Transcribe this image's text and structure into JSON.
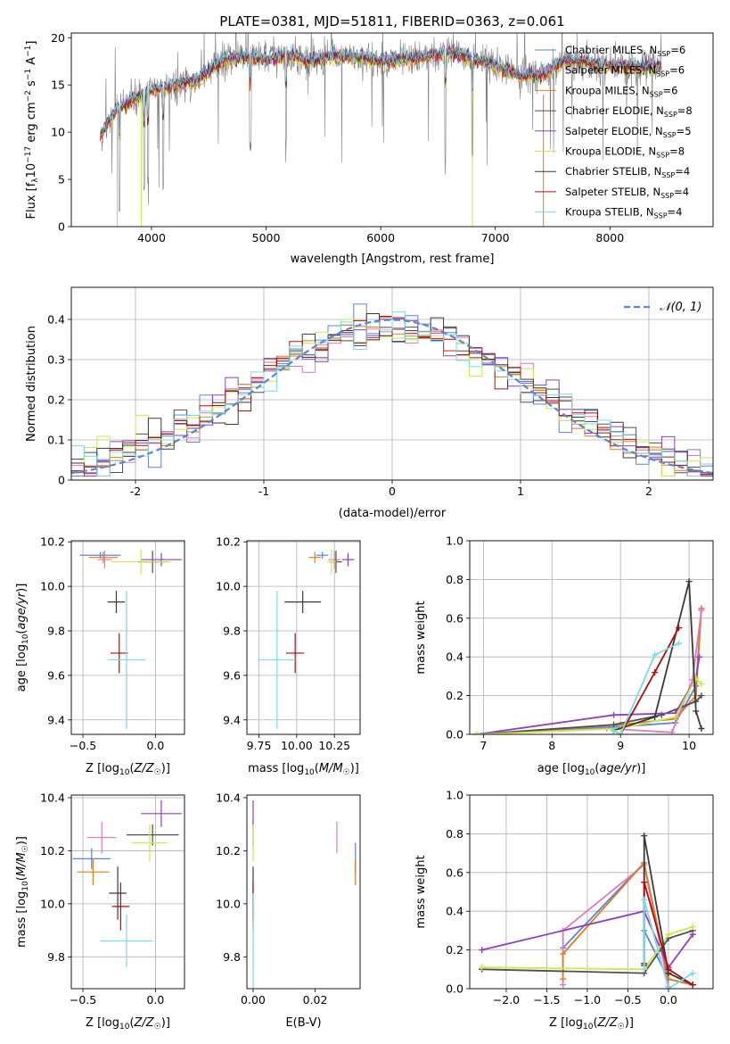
{
  "figure": {
    "title": "PLATE=0381, MJD=51811, FIBERID=0363, z=0.061"
  },
  "colors": {
    "Chabrier MILES": "#5b84d8",
    "Salpeter MILES": "#e377c2",
    "Kroupa MILES": "#e07b20",
    "Chabrier ELODIE": "#4f4f4f",
    "Salpeter ELODIE": "#8e3fc0",
    "Kroupa ELODIE": "#c9ea4a",
    "Chabrier STELIB": "#3a3a3a",
    "Salpeter STELIB": "#b00c0c",
    "Kroupa STELIB": "#7adbe4",
    "data": "#7f7f7f",
    "grid": "#b0b0b0",
    "gaussian": "#5b84d8"
  },
  "chart_data": [
    {
      "id": "spectrum",
      "type": "line",
      "title": "PLATE=0381, MJD=51811, FIBERID=0363, z=0.061",
      "xlabel": "wavelength [Angstrom, rest frame]",
      "ylabel": "Flux [f_λ 10^-17 erg cm^-2 s^-1 A^-1]",
      "xlim": [
        3300,
        8900
      ],
      "ylim": [
        0,
        20.5
      ],
      "xticks": [
        4000,
        5000,
        6000,
        7000,
        8000
      ],
      "yticks": [
        0,
        5,
        10,
        15,
        20
      ],
      "grid": false,
      "legend_position": "top-right",
      "continuum_x": [
        3550,
        3700,
        3850,
        4000,
        4200,
        4400,
        4600,
        4800,
        5000,
        5200,
        5400,
        5600,
        5800,
        6000,
        6200,
        6400,
        6600,
        6800,
        7000,
        7200,
        7400,
        7600,
        7800,
        8000,
        8200,
        8400
      ],
      "continuum_y": [
        9.5,
        12.5,
        13.5,
        14.5,
        15.0,
        15.5,
        17.5,
        18.0,
        17.8,
        18.2,
        17.5,
        18.2,
        18.0,
        17.5,
        17.8,
        18.0,
        18.5,
        17.8,
        17.0,
        16.0,
        16.0,
        17.5,
        17.5,
        17.0,
        17.0,
        17.0
      ],
      "absorption_lines": [
        3720,
        3934,
        3969,
        4102,
        4861,
        5175,
        6563,
        6800
      ],
      "series": [
        {
          "name": "Chabrier MILES, N_SSP=6",
          "label": "Chabrier MILES, N",
          "n": "6"
        },
        {
          "name": "Salpeter MILES, N_SSP=6",
          "label": "Salpeter MILES, N",
          "n": "6"
        },
        {
          "name": "Kroupa MILES, N_SSP=6",
          "label": "Kroupa MILES, N",
          "n": "6"
        },
        {
          "name": "Chabrier ELODIE, N_SSP=8",
          "label": "Chabrier ELODIE, N",
          "n": "8"
        },
        {
          "name": "Salpeter ELODIE, N_SSP=5",
          "label": "Salpeter ELODIE, N",
          "n": "5"
        },
        {
          "name": "Kroupa ELODIE, N_SSP=8",
          "label": "Kroupa ELODIE, N",
          "n": "8"
        },
        {
          "name": "Chabrier STELIB, N_SSP=4",
          "label": "Chabrier STELIB, N",
          "n": "4"
        },
        {
          "name": "Salpeter STELIB, N_SSP=4",
          "label": "Salpeter STELIB, N",
          "n": "4"
        },
        {
          "name": "Kroupa STELIB, N_SSP=4",
          "label": "Kroupa STELIB, N",
          "n": "4"
        }
      ]
    },
    {
      "id": "residuals",
      "type": "histogram",
      "xlabel": "(data-model)/error",
      "ylabel": "Normed distribution",
      "xlim": [
        -2.5,
        2.5
      ],
      "ylim": [
        0,
        0.48
      ],
      "xticks": [
        -2,
        -1,
        0,
        1,
        2
      ],
      "yticks": [
        0.0,
        0.1,
        0.2,
        0.3,
        0.4
      ],
      "grid": true,
      "legend": "𝒩(0, 1)",
      "legend_position": "top-right",
      "gaussian": {
        "mean": 0,
        "sigma": 1
      },
      "bins": [
        -2.5,
        -2.4,
        -2.3,
        -2.2,
        -2.1,
        -2.0,
        -1.9,
        -1.8,
        -1.7,
        -1.6,
        -1.5,
        -1.4,
        -1.3,
        -1.2,
        -1.1,
        -1.0,
        -0.9,
        -0.8,
        -0.7,
        -0.6,
        -0.5,
        -0.4,
        -0.3,
        -0.2,
        -0.1,
        0.0,
        0.1,
        0.2,
        0.3,
        0.4,
        0.5,
        0.6,
        0.7,
        0.8,
        0.9,
        1.0,
        1.1,
        1.2,
        1.3,
        1.4,
        1.5,
        1.6,
        1.7,
        1.8,
        1.9,
        2.0,
        2.1,
        2.2,
        2.3,
        2.4,
        2.5
      ]
    },
    {
      "id": "age-vs-z",
      "type": "scatter",
      "xlabel": "Z [log10(Z/Z☉)]",
      "ylabel": "age [log10(age/yr)]",
      "xlim": [
        -0.58,
        0.2
      ],
      "ylim": [
        9.335,
        10.205
      ],
      "xticks": [
        -0.5,
        0.0
      ],
      "xticklabels": [
        "−0.5",
        "0.0"
      ],
      "yticks": [
        9.4,
        9.6,
        9.8,
        10.0,
        10.2
      ],
      "grid": true,
      "points": [
        {
          "series": "Chabrier MILES",
          "x": -0.38,
          "xerr": 0.14,
          "y": 10.14,
          "yerr": 0.015
        },
        {
          "series": "Salpeter MILES",
          "x": -0.35,
          "xerr": 0.05,
          "y": 10.12,
          "yerr": 0.04
        },
        {
          "series": "Kroupa MILES",
          "x": -0.36,
          "xerr": 0.1,
          "y": 10.13,
          "yerr": 0.025
        },
        {
          "series": "Chabrier ELODIE",
          "x": -0.02,
          "xerr": 0.1,
          "y": 10.11,
          "yerr": 0.05
        },
        {
          "series": "Salpeter ELODIE",
          "x": 0.04,
          "xerr": 0.14,
          "y": 10.12,
          "yerr": 0.03
        },
        {
          "series": "Kroupa ELODIE",
          "x": -0.1,
          "xerr": 0.21,
          "y": 10.11,
          "yerr": 0.055
        },
        {
          "series": "Chabrier STELIB",
          "x": -0.27,
          "xerr": 0.06,
          "y": 9.93,
          "yerr": 0.05
        },
        {
          "series": "Salpeter STELIB",
          "x": -0.25,
          "xerr": 0.06,
          "y": 9.7,
          "yerr": 0.09
        },
        {
          "series": "Kroupa STELIB",
          "x": -0.2,
          "xerr": 0.13,
          "y": 9.67,
          "yerr": 0.31
        }
      ]
    },
    {
      "id": "age-vs-mass",
      "type": "scatter",
      "xlabel": "mass [log10(M/M☉)]",
      "xlim": [
        9.67,
        10.42
      ],
      "ylim": [
        9.335,
        10.205
      ],
      "xticks": [
        9.75,
        10.0,
        10.25
      ],
      "xticklabels": [
        "9.75",
        "10.00",
        "10.25"
      ],
      "yticks": [
        9.4,
        9.6,
        9.8,
        10.0,
        10.2
      ],
      "grid": true,
      "points": [
        {
          "series": "Chabrier MILES",
          "x": 10.17,
          "xerr": 0.04,
          "y": 10.14,
          "yerr": 0.015
        },
        {
          "series": "Salpeter MILES",
          "x": 10.25,
          "xerr": 0.04,
          "y": 10.12,
          "yerr": 0.04
        },
        {
          "series": "Kroupa MILES",
          "x": 10.12,
          "xerr": 0.04,
          "y": 10.13,
          "yerr": 0.025
        },
        {
          "series": "Chabrier ELODIE",
          "x": 10.26,
          "xerr": 0.04,
          "y": 10.11,
          "yerr": 0.05
        },
        {
          "series": "Salpeter ELODIE",
          "x": 10.34,
          "xerr": 0.04,
          "y": 10.12,
          "yerr": 0.03
        },
        {
          "series": "Kroupa ELODIE",
          "x": 10.23,
          "xerr": 0.03,
          "y": 10.11,
          "yerr": 0.055
        },
        {
          "series": "Chabrier STELIB",
          "x": 10.04,
          "xerr": 0.12,
          "y": 9.93,
          "yerr": 0.05
        },
        {
          "series": "Salpeter STELIB",
          "x": 9.99,
          "xerr": 0.06,
          "y": 9.7,
          "yerr": 0.09
        },
        {
          "series": "Kroupa STELIB",
          "x": 9.87,
          "xerr": 0.12,
          "y": 9.67,
          "yerr": 0.31
        }
      ]
    },
    {
      "id": "weight-vs-age",
      "type": "line",
      "xlabel": "age [log10(age/yr)]",
      "ylabel": "mass weight",
      "xlim": [
        6.8,
        10.35
      ],
      "ylim": [
        0,
        1.0
      ],
      "xticks": [
        7,
        8,
        9,
        10
      ],
      "yticks": [
        0.0,
        0.2,
        0.4,
        0.6,
        0.8,
        1.0
      ],
      "grid": true,
      "series": [
        {
          "series": "Chabrier MILES",
          "x": [
            6.9,
            9.0,
            9.8,
            10.1,
            10.18
          ],
          "y": [
            0.0,
            0.04,
            0.06,
            0.25,
            0.65
          ]
        },
        {
          "series": "Kroupa MILES",
          "x": [
            6.9,
            9.0,
            9.8,
            10.1,
            10.18
          ],
          "y": [
            0.0,
            0.05,
            0.08,
            0.2,
            0.65
          ]
        },
        {
          "series": "Salpeter MILES",
          "x": [
            6.9,
            8.8,
            9.75,
            10.05,
            10.18
          ],
          "y": [
            0.0,
            0.03,
            0.01,
            0.28,
            0.64
          ]
        },
        {
          "series": "Chabrier ELODIE",
          "x": [
            6.9,
            8.9,
            9.6,
            10.1,
            10.18
          ],
          "y": [
            0.0,
            0.05,
            0.1,
            0.17,
            0.2
          ]
        },
        {
          "series": "Salpeter ELODIE",
          "x": [
            6.9,
            8.9,
            9.8,
            10.1,
            10.15
          ],
          "y": [
            0.0,
            0.1,
            0.11,
            0.29,
            0.4
          ]
        },
        {
          "series": "Kroupa ELODIE",
          "x": [
            6.9,
            9.0,
            9.8,
            10.1,
            10.18
          ],
          "y": [
            0.0,
            0.03,
            0.09,
            0.29,
            0.26
          ]
        },
        {
          "series": "Chabrier STELIB",
          "x": [
            8.9,
            9.5,
            10.0,
            10.1,
            10.18
          ],
          "y": [
            0.02,
            0.09,
            0.79,
            0.12,
            0.03
          ]
        },
        {
          "series": "Salpeter STELIB",
          "x": [
            8.9,
            9.0,
            9.5,
            9.85
          ],
          "y": [
            0.02,
            0.0,
            0.32,
            0.55
          ]
        },
        {
          "series": "Kroupa STELIB",
          "x": [
            8.9,
            9.0,
            9.5,
            9.85
          ],
          "y": [
            0.02,
            0.0,
            0.41,
            0.47
          ]
        }
      ]
    },
    {
      "id": "mass-vs-z",
      "type": "scatter",
      "xlabel": "Z [log10(Z/Z☉)]",
      "ylabel": "mass [log10(M/M☉)]",
      "xlim": [
        -0.58,
        0.2
      ],
      "ylim": [
        9.68,
        10.41
      ],
      "xticks": [
        -0.5,
        0.0
      ],
      "xticklabels": [
        "−0.5",
        "0.0"
      ],
      "yticks": [
        9.8,
        10.0,
        10.2,
        10.4
      ],
      "grid": true,
      "points": [
        {
          "series": "Chabrier MILES",
          "x": -0.44,
          "xerr": 0.13,
          "y": 10.17,
          "yerr": 0.04
        },
        {
          "series": "Salpeter MILES",
          "x": -0.37,
          "xerr": 0.1,
          "y": 10.25,
          "yerr": 0.06
        },
        {
          "series": "Kroupa MILES",
          "x": -0.43,
          "xerr": 0.11,
          "y": 10.12,
          "yerr": 0.05
        },
        {
          "series": "Chabrier ELODIE",
          "x": -0.02,
          "xerr": 0.18,
          "y": 10.26,
          "yerr": 0.04
        },
        {
          "series": "Salpeter ELODIE",
          "x": 0.04,
          "xerr": 0.14,
          "y": 10.34,
          "yerr": 0.05
        },
        {
          "series": "Kroupa ELODIE",
          "x": -0.04,
          "xerr": 0.12,
          "y": 10.23,
          "yerr": 0.07
        },
        {
          "series": "Chabrier STELIB",
          "x": -0.26,
          "xerr": 0.06,
          "y": 10.04,
          "yerr": 0.1
        },
        {
          "series": "Salpeter STELIB",
          "x": -0.24,
          "xerr": 0.06,
          "y": 9.99,
          "yerr": 0.09
        },
        {
          "series": "Kroupa STELIB",
          "x": -0.2,
          "xerr": 0.18,
          "y": 9.86,
          "yerr": 0.1
        }
      ]
    },
    {
      "id": "mass-vs-ebv",
      "type": "scatter",
      "xlabel": "E(B-V)",
      "xlim": [
        -0.002,
        0.0345
      ],
      "ylim": [
        9.68,
        10.41
      ],
      "xticks": [
        0.0,
        0.02
      ],
      "xticklabels": [
        "0.00",
        "0.02"
      ],
      "yticks": [
        9.8,
        10.0,
        10.2,
        10.4
      ],
      "grid": false,
      "points": [
        {
          "series": "Chabrier MILES",
          "x": 0.033,
          "xerr": 0,
          "y": 10.17,
          "yerr": 0.06
        },
        {
          "series": "Salpeter MILES",
          "x": 0.027,
          "xerr": 0,
          "y": 10.25,
          "yerr": 0.06
        },
        {
          "series": "Kroupa MILES",
          "x": 0.033,
          "xerr": 0,
          "y": 10.12,
          "yerr": 0.05
        },
        {
          "series": "Chabrier ELODIE",
          "x": 0.0,
          "xerr": 0,
          "y": 10.26,
          "yerr": 0.05
        },
        {
          "series": "Salpeter ELODIE",
          "x": 0.0,
          "xerr": 0,
          "y": 10.34,
          "yerr": 0.05
        },
        {
          "series": "Kroupa ELODIE",
          "x": 0.0,
          "xerr": 0,
          "y": 10.23,
          "yerr": 0.07
        },
        {
          "series": "Chabrier STELIB",
          "x": 0.0,
          "xerr": 0,
          "y": 10.04,
          "yerr": 0.1
        },
        {
          "series": "Salpeter STELIB",
          "x": 0.0,
          "xerr": 0,
          "y": 9.99,
          "yerr": 0.09
        },
        {
          "series": "Kroupa STELIB",
          "x": 0.0,
          "xerr": 0,
          "y": 9.86,
          "yerr": 0.18
        }
      ]
    },
    {
      "id": "weight-vs-z",
      "type": "line",
      "xlabel": "Z [log10(Z/Z☉)]",
      "ylabel": "mass weight",
      "xlim": [
        -2.45,
        0.55
      ],
      "ylim": [
        0,
        1.0
      ],
      "xticks": [
        -2.0,
        -1.5,
        -1.0,
        -0.5,
        0.0
      ],
      "xticklabels": [
        "−2.0",
        "−1.5",
        "−1.0",
        "−0.5",
        "0.0"
      ],
      "yticks": [
        0.0,
        0.2,
        0.4,
        0.6,
        0.8,
        1.0
      ],
      "grid": true,
      "series": [
        {
          "series": "Chabrier MILES",
          "x": [
            -1.3,
            -0.3,
            -0.3,
            0.0,
            0.3
          ],
          "y": [
            0.21,
            0.65,
            0.3,
            0.05,
            0.02
          ]
        },
        {
          "series": "Salpeter MILES",
          "x": [
            -1.3,
            -1.3,
            -0.3,
            0.0
          ],
          "y": [
            0.02,
            0.3,
            0.64,
            0.01
          ]
        },
        {
          "series": "Kroupa MILES",
          "x": [
            -1.3,
            -1.3,
            -0.3,
            0.0,
            0.3
          ],
          "y": [
            0.05,
            0.18,
            0.65,
            0.05,
            0.02
          ]
        },
        {
          "series": "Chabrier ELODIE",
          "x": [
            -2.3,
            -0.3,
            0.0,
            0.3
          ],
          "y": [
            0.1,
            0.08,
            0.26,
            0.3
          ]
        },
        {
          "series": "Salpeter ELODIE",
          "x": [
            -2.3,
            -0.3,
            0.0,
            0.3
          ],
          "y": [
            0.2,
            0.4,
            0.11,
            0.28
          ]
        },
        {
          "series": "Kroupa ELODIE",
          "x": [
            -2.3,
            -0.3,
            0.0,
            0.3
          ],
          "y": [
            0.11,
            0.1,
            0.28,
            0.32
          ]
        },
        {
          "series": "Chabrier STELIB",
          "x": [
            -0.3,
            -0.3,
            0.0,
            0.3
          ],
          "y": [
            0.13,
            0.79,
            0.08,
            0.02
          ]
        },
        {
          "series": "Salpeter STELIB",
          "x": [
            -0.3,
            -0.3,
            0.0,
            0.3
          ],
          "y": [
            0.12,
            0.55,
            0.1,
            0.02
          ]
        },
        {
          "series": "Kroupa STELIB",
          "x": [
            -0.3,
            -0.3,
            0.0,
            0.3
          ],
          "y": [
            0.1,
            0.46,
            0.0,
            0.08
          ]
        }
      ]
    }
  ]
}
